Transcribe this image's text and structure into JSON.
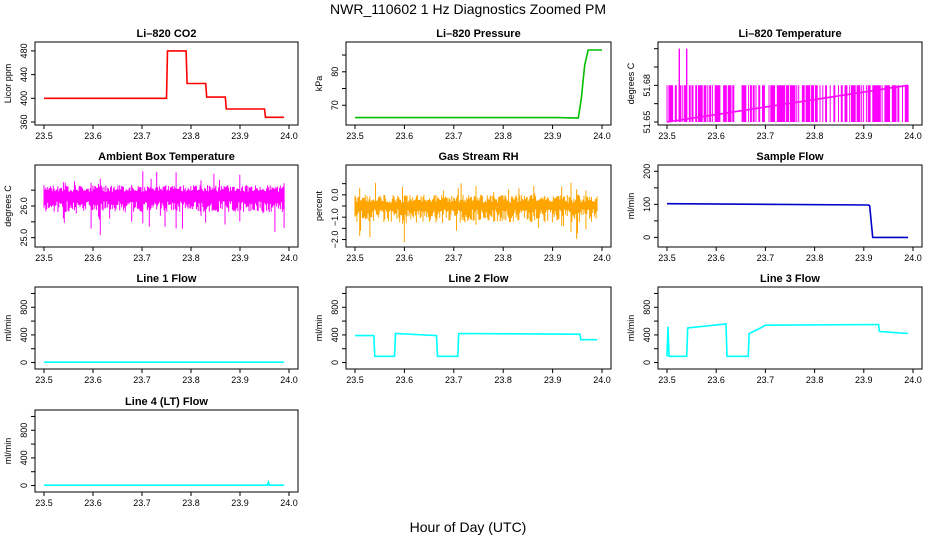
{
  "title": "NWR_110602  1 Hz Diagnostics Zoomed PM",
  "xlabel": "Hour of Day (UTC)",
  "chart_data": [
    {
      "type": "line",
      "title": "Li–820 CO2",
      "ylabel": "Licor ppm",
      "xlim": [
        23.5,
        24.0
      ],
      "ylim": [
        360,
        490
      ],
      "xticks": [
        "23.5",
        "23.6",
        "23.7",
        "23.8",
        "23.9",
        "24.0"
      ],
      "yticks": [
        360,
        400,
        440,
        480
      ],
      "ytick_labels": [
        "360",
        "400",
        "440",
        "480"
      ],
      "color": "#ff0000",
      "x": [
        23.5,
        23.75,
        23.752,
        23.79,
        23.792,
        23.83,
        23.832,
        23.87,
        23.872,
        23.95,
        23.952,
        23.99
      ],
      "values": [
        400,
        400,
        480,
        480,
        425,
        425,
        402,
        402,
        382,
        382,
        368,
        368
      ]
    },
    {
      "type": "line",
      "title": "Li–820 Pressure",
      "ylabel": "kPa",
      "xlim": [
        23.5,
        24.0
      ],
      "ylim": [
        65,
        88
      ],
      "xticks": [
        "23.5",
        "23.6",
        "23.7",
        "23.8",
        "23.9",
        "24.0"
      ],
      "yticks": [
        70,
        75,
        80,
        85
      ],
      "ytick_labels": [
        "70",
        "",
        "80",
        ""
      ],
      "color": "#00c000",
      "x": [
        23.5,
        23.91,
        23.952,
        23.958,
        23.965,
        23.972,
        23.978,
        24.0
      ],
      "values": [
        66.3,
        66.3,
        66.2,
        72,
        82,
        86.5,
        86.5,
        86.5
      ]
    },
    {
      "type": "line",
      "title": "Li–820 Temperature",
      "ylabel": "degrees C",
      "xlim": [
        23.5,
        24.0
      ],
      "ylim": [
        51.65,
        51.692
      ],
      "xticks": [
        "23.5",
        "23.6",
        "23.7",
        "23.8",
        "23.9",
        "24.0"
      ],
      "yticks": [
        51.65,
        51.66,
        51.67,
        51.68,
        51.69
      ],
      "ytick_labels": [
        "51.65",
        "",
        "51.68",
        "",
        ""
      ],
      "color": "#ff00ff",
      "x": [
        23.5,
        23.99
      ],
      "values": [
        51.65,
        51.67
      ],
      "spikes": {
        "x": [
          23.525,
          23.54
        ],
        "values": [
          51.69,
          51.69
        ]
      }
    },
    {
      "type": "line",
      "title": "Ambient Box Temperature",
      "ylabel": "degrees C",
      "xlim": [
        23.5,
        24.0
      ],
      "ylim": [
        24.8,
        27.2
      ],
      "xticks": [
        "23.5",
        "23.6",
        "23.7",
        "23.8",
        "23.9",
        "24.0"
      ],
      "yticks": [
        25.0,
        25.5,
        26.0,
        26.5
      ],
      "ytick_labels": [
        "25.0",
        "",
        "26.0",
        ""
      ],
      "color": "#ff00ff",
      "x": [
        23.5,
        23.99
      ],
      "values": [
        26.3,
        26.3
      ]
    },
    {
      "type": "line",
      "title": "Gas Stream RH",
      "ylabel": "percent",
      "xlim": [
        23.5,
        24.0
      ],
      "ylim": [
        -2.2,
        1.2
      ],
      "xticks": [
        "23.5",
        "23.6",
        "23.7",
        "23.8",
        "23.9",
        "24.0"
      ],
      "yticks": [
        -2.0,
        -1.5,
        -1.0,
        -0.5,
        0.0,
        0.5
      ],
      "ytick_labels": [
        "−2.0",
        "",
        "−1.0",
        "",
        "0.0",
        ""
      ],
      "color": "#ffa500",
      "x": [
        23.5,
        23.99
      ],
      "values": [
        -0.5,
        -0.5
      ]
    },
    {
      "type": "line",
      "title": "Sample Flow",
      "ylabel": "ml/min",
      "xlim": [
        23.5,
        24.0
      ],
      "ylim": [
        -20,
        210
      ],
      "xticks": [
        "23.5",
        "23.6",
        "23.7",
        "23.8",
        "23.9",
        "24.0"
      ],
      "yticks": [
        0,
        50,
        100,
        150,
        200
      ],
      "ytick_labels": [
        "0",
        "",
        "100",
        "",
        "200"
      ],
      "color": "#0000c8",
      "x": [
        23.5,
        23.91,
        23.912,
        23.918,
        23.99
      ],
      "values": [
        102,
        98,
        95,
        0,
        0
      ]
    },
    {
      "type": "line",
      "title": "Line 1 Flow",
      "ylabel": "ml/min",
      "xlim": [
        23.5,
        24.0
      ],
      "ylim": [
        -50,
        1050
      ],
      "xticks": [
        "23.5",
        "23.6",
        "23.7",
        "23.8",
        "23.9",
        "24.0"
      ],
      "yticks": [
        0,
        200,
        400,
        600,
        800,
        1000
      ],
      "ytick_labels": [
        "0",
        "",
        "400",
        "",
        "800",
        ""
      ],
      "color": "#00ffff",
      "x": [
        23.5,
        23.99
      ],
      "values": [
        5,
        5
      ]
    },
    {
      "type": "line",
      "title": "Line 2 Flow",
      "ylabel": "ml/min",
      "xlim": [
        23.5,
        24.0
      ],
      "ylim": [
        -50,
        1050
      ],
      "xticks": [
        "23.5",
        "23.6",
        "23.7",
        "23.8",
        "23.9",
        "24.0"
      ],
      "yticks": [
        0,
        200,
        400,
        600,
        800,
        1000
      ],
      "ytick_labels": [
        "0",
        "",
        "400",
        "",
        "800",
        ""
      ],
      "color": "#00ffff",
      "x": [
        23.5,
        23.538,
        23.54,
        23.58,
        23.582,
        23.665,
        23.667,
        23.708,
        23.71,
        23.955,
        23.957,
        23.99
      ],
      "values": [
        390,
        390,
        90,
        90,
        420,
        390,
        90,
        90,
        420,
        410,
        330,
        330
      ]
    },
    {
      "type": "line",
      "title": "Line 3 Flow",
      "ylabel": "ml/min",
      "xlim": [
        23.5,
        24.0
      ],
      "ylim": [
        -50,
        1050
      ],
      "xticks": [
        "23.5",
        "23.6",
        "23.7",
        "23.8",
        "23.9",
        "24.0"
      ],
      "yticks": [
        0,
        200,
        400,
        600,
        800,
        1000
      ],
      "ytick_labels": [
        "0",
        "",
        "400",
        "",
        "800",
        ""
      ],
      "color": "#00ffff",
      "x": [
        23.5,
        23.502,
        23.504,
        23.54,
        23.542,
        23.62,
        23.622,
        23.665,
        23.667,
        23.69,
        23.7,
        23.93,
        23.932,
        23.99
      ],
      "values": [
        90,
        520,
        90,
        90,
        500,
        560,
        90,
        90,
        420,
        500,
        540,
        550,
        450,
        420
      ]
    },
    {
      "type": "line",
      "title": "Line 4 (LT) Flow",
      "ylabel": "ml/min",
      "xlim": [
        23.5,
        24.0
      ],
      "ylim": [
        -50,
        1050
      ],
      "xticks": [
        "23.5",
        "23.6",
        "23.7",
        "23.8",
        "23.9",
        "24.0"
      ],
      "yticks": [
        0,
        200,
        400,
        600,
        800,
        1000
      ],
      "ytick_labels": [
        "0",
        "",
        "400",
        "",
        "800",
        ""
      ],
      "color": "#00ffff",
      "x": [
        23.5,
        23.956,
        23.958,
        23.96,
        23.99
      ],
      "values": [
        5,
        5,
        45,
        5,
        5
      ]
    }
  ]
}
